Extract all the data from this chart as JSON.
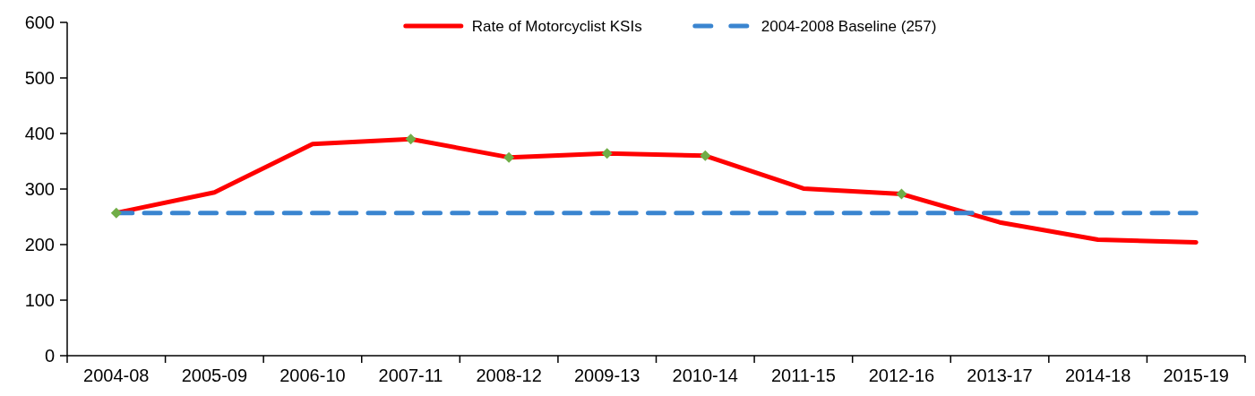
{
  "chart_data": {
    "type": "line",
    "categories": [
      "2004-08",
      "2005-09",
      "2006-10",
      "2007-11",
      "2008-12",
      "2009-13",
      "2010-14",
      "2011-15",
      "2012-16",
      "2013-17",
      "2014-18",
      "2015-19"
    ],
    "ylim": [
      0,
      600
    ],
    "yticks": [
      0,
      100,
      200,
      300,
      400,
      500,
      600
    ],
    "grid": false,
    "legend": "top",
    "series": [
      {
        "name": "Rate of Motorcyclist KSIs",
        "color": "#ff0000",
        "line_style": "solid",
        "values": [
          257,
          294,
          381,
          390,
          357,
          364,
          360,
          301,
          291,
          240,
          209,
          204
        ]
      },
      {
        "name": "2004-2008 Baseline (257)",
        "color": "#3a85d0",
        "line_style": "dashed",
        "values": [
          257,
          257,
          257,
          257,
          257,
          257,
          257,
          257,
          257,
          257,
          257,
          257
        ]
      },
      {
        "type": "scatter",
        "color": "#70ad47",
        "marker": "diamond",
        "values": [
          257,
          null,
          null,
          390,
          357,
          364,
          360,
          null,
          291,
          null,
          null,
          null
        ]
      }
    ]
  }
}
